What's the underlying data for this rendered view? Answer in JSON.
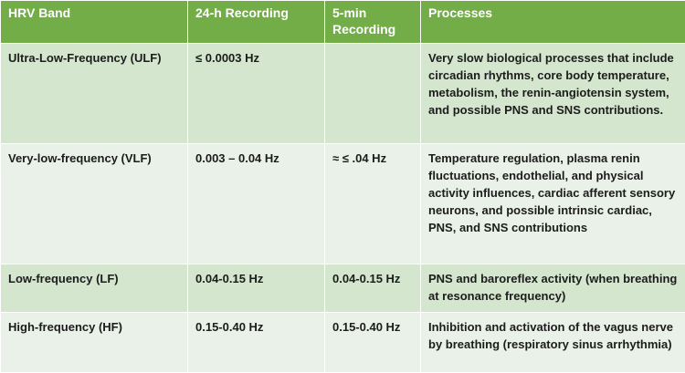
{
  "table": {
    "header": [
      "HRV Band",
      "24-h Recording",
      "5-min Recording",
      "Processes"
    ],
    "rows": [
      [
        "Ultra-Low-Frequency (ULF)",
        "≤ 0.0003 Hz",
        "",
        "Very slow biological processes that include circadian rhythms, core body temperature, metabolism, the renin-angiotensin system, and possible PNS and SNS contributions."
      ],
      [
        "Very-low-frequency (VLF)",
        "0.003 – 0.04 Hz",
        "≈ ≤ .04 Hz",
        "Temperature regulation, plasma renin fluctuations, endothelial, and physical activity influences, cardiac afferent sensory neurons, and possible intrinsic cardiac, PNS, and SNS contributions"
      ],
      [
        "Low-frequency (LF)",
        "0.04-0.15 Hz",
        "0.04-0.15 Hz",
        "PNS and baroreflex activity (when breathing at resonance frequency)"
      ],
      [
        "High-frequency (HF)",
        "0.15-0.40 Hz",
        "0.15-0.40 Hz",
        "Inhibition and activation of the vagus nerve by breathing (respiratory sinus arrhythmia)"
      ]
    ]
  }
}
